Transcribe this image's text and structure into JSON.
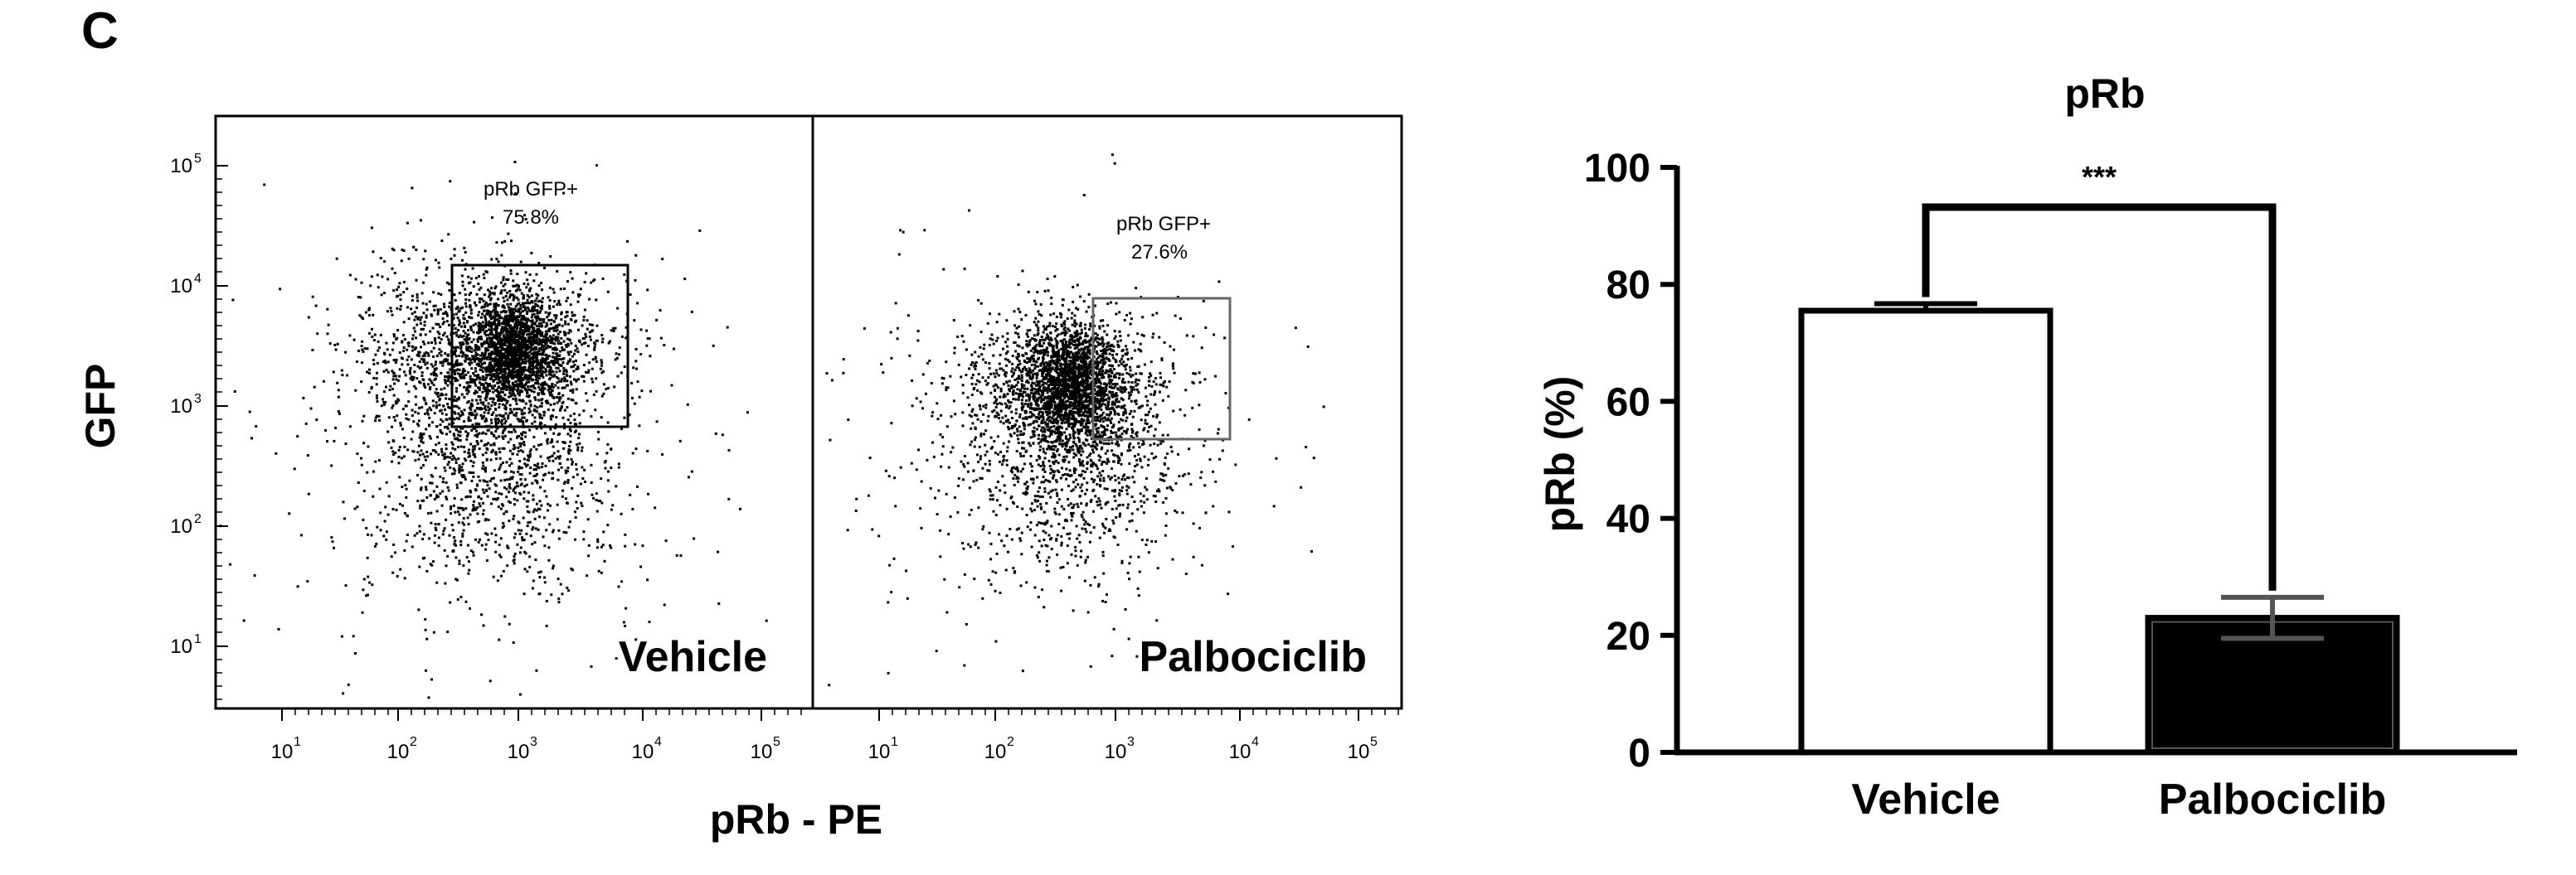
{
  "panel_label": "C",
  "flow_plots": {
    "y_axis_label": "GFP",
    "x_axis_label": "pRb - PE",
    "y_ticks": [
      "10",
      "10",
      "10",
      "10",
      "10"
    ],
    "y_tick_exponents": [
      "5",
      "4",
      "3",
      "2",
      "1"
    ],
    "x_ticks": [
      "10",
      "10",
      "10",
      "10",
      "10"
    ],
    "x_tick_exponents": [
      "1",
      "2",
      "3",
      "4",
      "5"
    ],
    "panels": [
      {
        "condition": "Vehicle",
        "gate_label": "pRb GFP+",
        "gate_percent": "75.8%",
        "point_color": "#000000",
        "gate_color": "#000000"
      },
      {
        "condition": "Palbociclib",
        "gate_label": "pRb GFP+",
        "gate_percent": "27.6%",
        "point_color": "#000000",
        "gate_color": "#666666"
      }
    ]
  },
  "chart_data": {
    "type": "bar",
    "title": "pRb",
    "ylabel": "pRb (%)",
    "xlabel": "",
    "categories": [
      "Vehicle",
      "Palbociclib"
    ],
    "values": [
      75.5,
      23
    ],
    "error": [
      1.2,
      3.5
    ],
    "ylim": [
      0,
      100
    ],
    "yticks": [
      "0",
      "20",
      "40",
      "60",
      "80",
      "100"
    ],
    "bar_colors": [
      "#ffffff",
      "#000000"
    ],
    "significance": "***",
    "grid": false
  }
}
